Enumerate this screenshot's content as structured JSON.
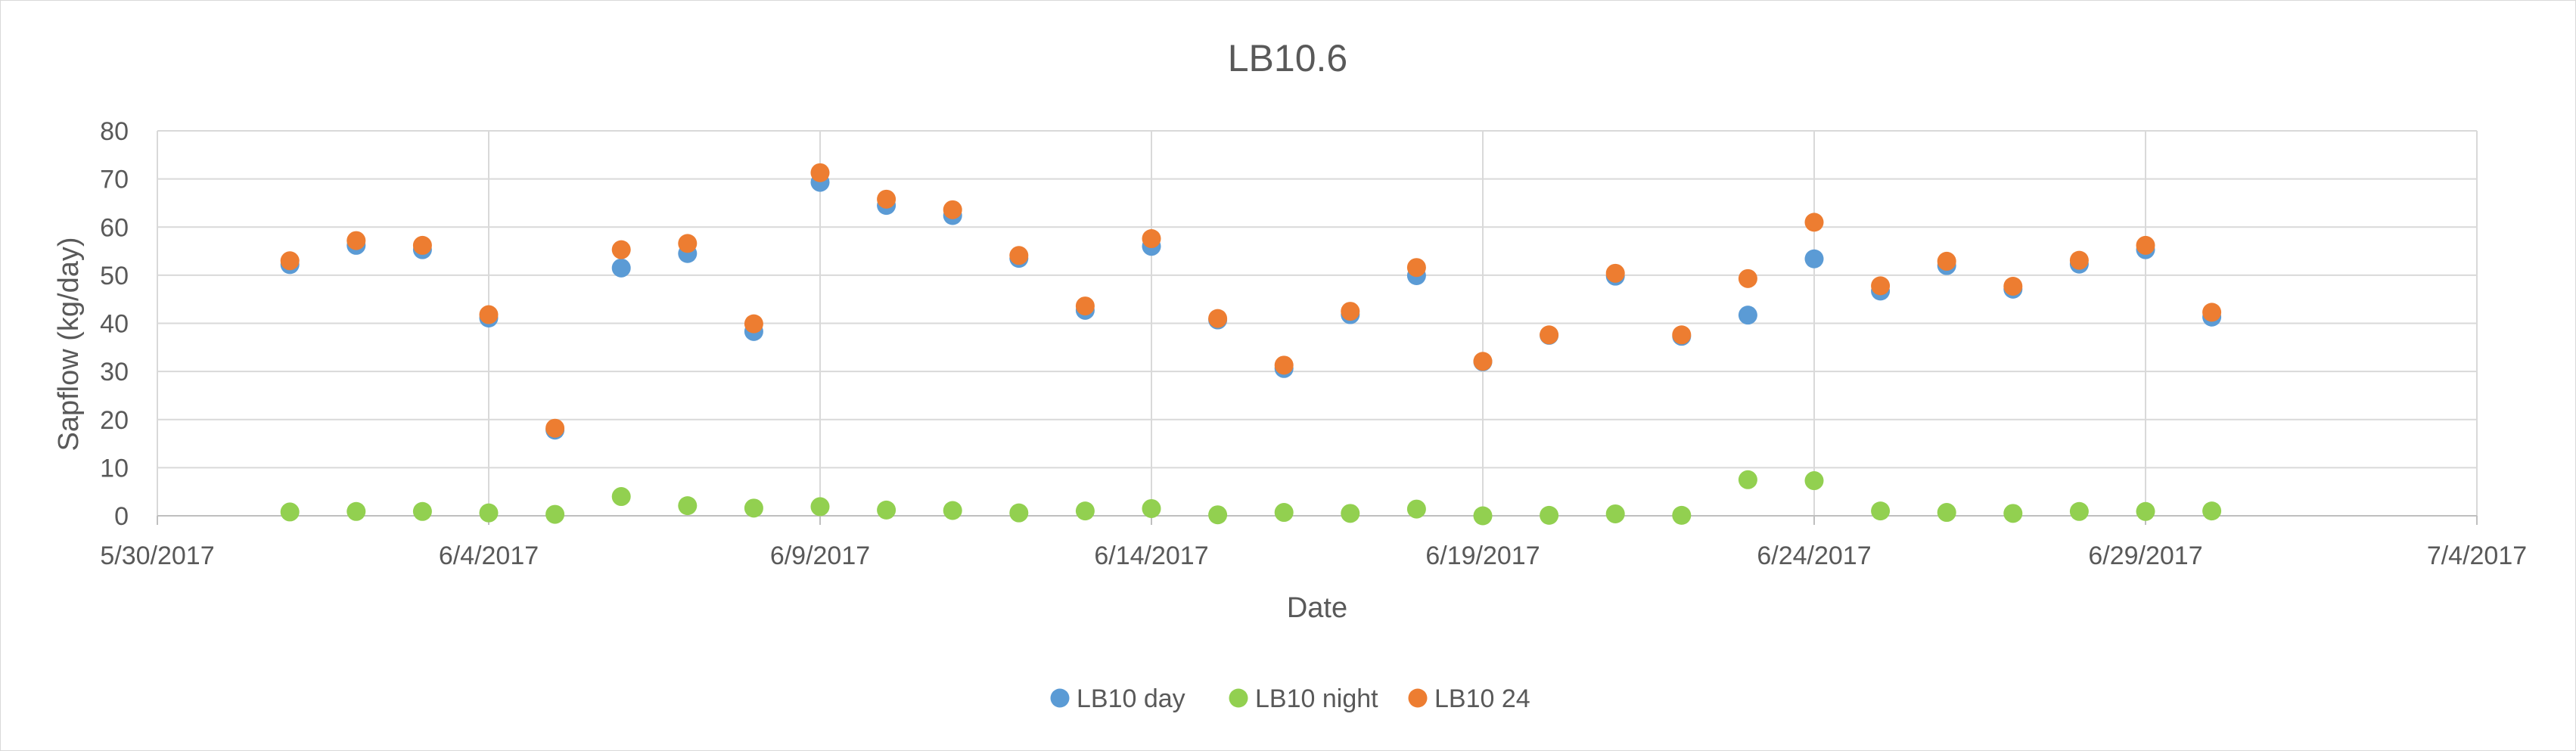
{
  "chart_data": {
    "type": "scatter",
    "title": "LB10.6",
    "xlabel": "Date",
    "ylabel": "Sapflow (kg/day)",
    "x_axis_type": "date",
    "xlim": [
      "2017-05-30",
      "2017-07-04"
    ],
    "x_ticks": [
      "5/30/2017",
      "6/4/2017",
      "6/9/2017",
      "6/14/2017",
      "6/19/2017",
      "6/24/2017",
      "6/29/2017",
      "7/4/2017"
    ],
    "x_tick_dates": [
      "2017-05-30",
      "2017-06-04",
      "2017-06-09",
      "2017-06-14",
      "2017-06-19",
      "2017-06-24",
      "2017-06-29",
      "2017-07-04"
    ],
    "ylim": [
      0,
      80
    ],
    "y_ticks": [
      0,
      10,
      20,
      30,
      40,
      50,
      60,
      70,
      80
    ],
    "grid": true,
    "legend_position": "bottom",
    "x": [
      "2017-06-01",
      "2017-06-02",
      "2017-06-03",
      "2017-06-04",
      "2017-06-05",
      "2017-06-06",
      "2017-06-07",
      "2017-06-08",
      "2017-06-09",
      "2017-06-10",
      "2017-06-11",
      "2017-06-12",
      "2017-06-13",
      "2017-06-14",
      "2017-06-15",
      "2017-06-16",
      "2017-06-17",
      "2017-06-18",
      "2017-06-19",
      "2017-06-20",
      "2017-06-21",
      "2017-06-22",
      "2017-06-23",
      "2017-06-24",
      "2017-06-25",
      "2017-06-26",
      "2017-06-27",
      "2017-06-28",
      "2017-06-29",
      "2017-06-30"
    ],
    "series": [
      {
        "name": "LB10 day",
        "color": "#5b9bd5",
        "values": [
          52.2,
          56.2,
          55.3,
          41.1,
          17.8,
          51.5,
          54.5,
          38.3,
          69.3,
          64.5,
          62.4,
          53.5,
          42.7,
          56.0,
          40.7,
          30.6,
          41.8,
          49.9,
          32.0,
          37.5,
          49.8,
          37.3,
          41.7,
          53.4,
          46.7,
          52.0,
          47.1,
          52.3,
          55.3,
          41.3
        ]
      },
      {
        "name": "LB10 night",
        "color": "#92d050",
        "values": [
          0.8,
          0.9,
          0.9,
          0.6,
          0.3,
          4.0,
          2.1,
          1.6,
          1.9,
          1.2,
          1.1,
          0.6,
          1.0,
          1.5,
          0.2,
          0.7,
          0.5,
          1.4,
          0.0,
          0.1,
          0.4,
          0.1,
          7.5,
          7.3,
          1.0,
          0.7,
          0.5,
          0.9,
          0.9,
          1.0
        ]
      },
      {
        "name": "LB10 24",
        "color": "#ed7d31",
        "values": [
          53.0,
          57.2,
          56.2,
          41.8,
          18.2,
          55.3,
          56.6,
          39.9,
          71.3,
          65.8,
          63.6,
          54.1,
          43.6,
          57.6,
          41.0,
          31.3,
          42.5,
          51.6,
          32.1,
          37.6,
          50.4,
          37.6,
          49.3,
          61.0,
          47.8,
          52.9,
          47.7,
          53.1,
          56.2,
          42.3
        ]
      }
    ]
  }
}
